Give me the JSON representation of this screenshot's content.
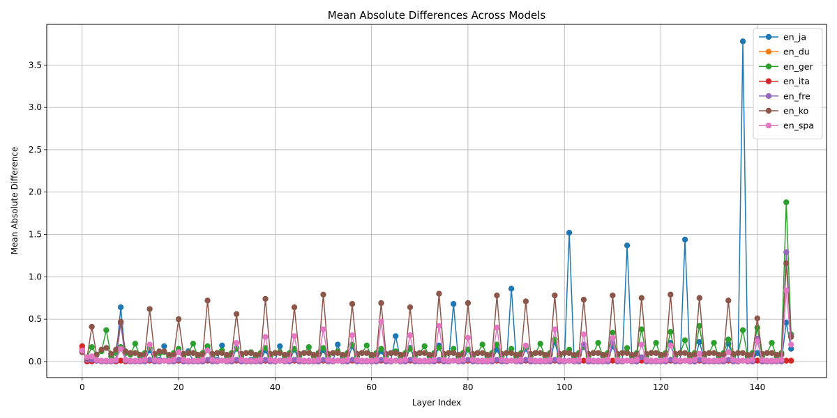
{
  "chart_data": {
    "type": "line",
    "title": "Mean Absolute Differences Across Models",
    "xlabel": "Layer Index",
    "ylabel": "Mean Absolute Difference",
    "xlim": [
      -7.35,
      154.35
    ],
    "ylim": [
      -0.19,
      3.98
    ],
    "xticks": [
      0,
      20,
      40,
      60,
      80,
      100,
      120,
      140
    ],
    "yticks": [
      0.0,
      0.5,
      1.0,
      1.5,
      2.0,
      2.5,
      3.0,
      3.5
    ],
    "grid": true,
    "legend_position": "top-right",
    "x_start": 0,
    "series": [
      {
        "name": "en_ja",
        "color": "#1f77b4",
        "values": [
          0.12,
          0.03,
          0.04,
          0.01,
          0.01,
          0.01,
          0.01,
          0.02,
          0.64,
          0.02,
          0.01,
          0.01,
          0.01,
          0.02,
          0.13,
          0.02,
          0.02,
          0.18,
          0.02,
          0.01,
          0.14,
          0.02,
          0.12,
          0.01,
          0.01,
          0.02,
          0.14,
          0.03,
          0.02,
          0.19,
          0.02,
          0.01,
          0.16,
          0.02,
          0.01,
          0.02,
          0.01,
          0.01,
          0.13,
          0.02,
          0.01,
          0.18,
          0.02,
          0.01,
          0.14,
          0.01,
          0.01,
          0.01,
          0.01,
          0.02,
          0.13,
          0.02,
          0.01,
          0.2,
          0.02,
          0.01,
          0.18,
          0.02,
          0.01,
          0.01,
          0.01,
          0.02,
          0.12,
          0.02,
          0.01,
          0.3,
          0.02,
          0.01,
          0.16,
          0.02,
          0.01,
          0.01,
          0.01,
          0.01,
          0.19,
          0.02,
          0.01,
          0.68,
          0.02,
          0.01,
          0.14,
          0.02,
          0.01,
          0.01,
          0.01,
          0.01,
          0.14,
          0.02,
          0.01,
          0.86,
          0.02,
          0.01,
          0.15,
          0.02,
          0.01,
          0.01,
          0.01,
          0.01,
          0.23,
          0.02,
          0.01,
          1.52,
          0.02,
          0.01,
          0.2,
          0.02,
          0.01,
          0.01,
          0.01,
          0.01,
          0.18,
          0.02,
          0.01,
          1.37,
          0.02,
          0.01,
          0.04,
          0.02,
          0.01,
          0.01,
          0.01,
          0.01,
          0.22,
          0.02,
          0.01,
          1.44,
          0.02,
          0.01,
          0.23,
          0.02,
          0.01,
          0.01,
          0.01,
          0.01,
          0.21,
          0.02,
          0.01,
          3.78,
          0.02,
          0.01,
          0.1,
          0.02,
          0.01,
          0.01,
          0.01,
          0.01,
          0.46,
          0.15
        ]
      },
      {
        "name": "en_du",
        "color": "#ff7f0e",
        "values": [
          0.15,
          0.01,
          0.01,
          0.01,
          0.0,
          0.0,
          0.0,
          0.0,
          0.01,
          0.01,
          0.0,
          0.0,
          0.0,
          0.0,
          0.01,
          0.0,
          0.0,
          0.01,
          0.0,
          0.0,
          0.01,
          0.0,
          0.0,
          0.0,
          0.0,
          0.0,
          0.01,
          0.0,
          0.0,
          0.01,
          0.0,
          0.0,
          0.01,
          0.0,
          0.0,
          0.0,
          0.0,
          0.0,
          0.01,
          0.0,
          0.0,
          0.01,
          0.0,
          0.0,
          0.01,
          0.0,
          0.0,
          0.0,
          0.0,
          0.0,
          0.01,
          0.0,
          0.0,
          0.01,
          0.0,
          0.0,
          0.01,
          0.0,
          0.0,
          0.0,
          0.0,
          0.0,
          0.01,
          0.0,
          0.0,
          0.01,
          0.0,
          0.0,
          0.01,
          0.0,
          0.0,
          0.0,
          0.0,
          0.0,
          0.01,
          0.0,
          0.0,
          0.01,
          0.0,
          0.0,
          0.01,
          0.0,
          0.0,
          0.0,
          0.0,
          0.0,
          0.01,
          0.0,
          0.0,
          0.01,
          0.0,
          0.0,
          0.01,
          0.0,
          0.0,
          0.0,
          0.0,
          0.0,
          0.01,
          0.0,
          0.0,
          0.01,
          0.0,
          0.0,
          0.01,
          0.0,
          0.0,
          0.0,
          0.0,
          0.0,
          0.01,
          0.0,
          0.0,
          0.01,
          0.0,
          0.0,
          0.01,
          0.0,
          0.0,
          0.0,
          0.0,
          0.0,
          0.01,
          0.0,
          0.0,
          0.01,
          0.0,
          0.0,
          0.01,
          0.0,
          0.0,
          0.0,
          0.0,
          0.0,
          0.01,
          0.0,
          0.0,
          0.01,
          0.0,
          0.0,
          0.01,
          0.0,
          0.0,
          0.0,
          0.0,
          0.0,
          0.01,
          0.01
        ]
      },
      {
        "name": "en_ger",
        "color": "#2ca02c",
        "values": [
          0.12,
          0.05,
          0.17,
          0.08,
          0.12,
          0.37,
          0.06,
          0.1,
          0.17,
          0.1,
          0.08,
          0.21,
          0.06,
          0.1,
          0.16,
          0.06,
          0.1,
          0.11,
          0.06,
          0.1,
          0.15,
          0.06,
          0.1,
          0.21,
          0.06,
          0.1,
          0.18,
          0.06,
          0.1,
          0.13,
          0.06,
          0.1,
          0.15,
          0.06,
          0.1,
          0.11,
          0.06,
          0.1,
          0.16,
          0.06,
          0.1,
          0.11,
          0.06,
          0.1,
          0.15,
          0.06,
          0.1,
          0.17,
          0.06,
          0.1,
          0.16,
          0.06,
          0.1,
          0.12,
          0.06,
          0.1,
          0.2,
          0.06,
          0.1,
          0.19,
          0.06,
          0.1,
          0.15,
          0.06,
          0.1,
          0.12,
          0.06,
          0.1,
          0.15,
          0.06,
          0.1,
          0.18,
          0.06,
          0.1,
          0.16,
          0.06,
          0.1,
          0.15,
          0.06,
          0.1,
          0.14,
          0.06,
          0.1,
          0.2,
          0.06,
          0.1,
          0.2,
          0.06,
          0.1,
          0.15,
          0.06,
          0.1,
          0.17,
          0.06,
          0.1,
          0.21,
          0.06,
          0.1,
          0.26,
          0.06,
          0.1,
          0.14,
          0.06,
          0.1,
          0.17,
          0.06,
          0.1,
          0.22,
          0.06,
          0.1,
          0.34,
          0.06,
          0.1,
          0.16,
          0.06,
          0.1,
          0.38,
          0.06,
          0.1,
          0.22,
          0.06,
          0.1,
          0.35,
          0.06,
          0.1,
          0.25,
          0.06,
          0.1,
          0.42,
          0.06,
          0.1,
          0.22,
          0.06,
          0.1,
          0.26,
          0.06,
          0.1,
          0.37,
          0.06,
          0.1,
          0.4,
          0.06,
          0.1,
          0.22,
          0.06,
          0.1,
          1.88,
          0.32
        ]
      },
      {
        "name": "en_ita",
        "color": "#d62728",
        "values": [
          0.18,
          0.0,
          0.0,
          0.01,
          0.0,
          0.0,
          0.0,
          0.0,
          0.01,
          0.0,
          0.0,
          0.0,
          0.0,
          0.0,
          0.01,
          0.0,
          0.0,
          0.01,
          0.0,
          0.0,
          0.01,
          0.0,
          0.0,
          0.0,
          0.0,
          0.0,
          0.01,
          0.0,
          0.0,
          0.01,
          0.0,
          0.0,
          0.01,
          0.0,
          0.0,
          0.0,
          0.0,
          0.0,
          0.01,
          0.0,
          0.0,
          0.01,
          0.0,
          0.0,
          0.01,
          0.0,
          0.0,
          0.0,
          0.0,
          0.0,
          0.01,
          0.0,
          0.0,
          0.01,
          0.0,
          0.0,
          0.01,
          0.0,
          0.0,
          0.0,
          0.0,
          0.0,
          0.01,
          0.0,
          0.0,
          0.01,
          0.0,
          0.0,
          0.01,
          0.0,
          0.0,
          0.0,
          0.0,
          0.0,
          0.01,
          0.0,
          0.0,
          0.01,
          0.0,
          0.0,
          0.01,
          0.0,
          0.0,
          0.0,
          0.0,
          0.0,
          0.01,
          0.0,
          0.0,
          0.01,
          0.0,
          0.0,
          0.01,
          0.0,
          0.0,
          0.0,
          0.0,
          0.0,
          0.01,
          0.0,
          0.0,
          0.01,
          0.0,
          0.0,
          0.01,
          0.0,
          0.0,
          0.0,
          0.0,
          0.0,
          0.01,
          0.0,
          0.0,
          0.01,
          0.0,
          0.0,
          0.01,
          0.0,
          0.0,
          0.0,
          0.0,
          0.0,
          0.01,
          0.0,
          0.0,
          0.01,
          0.0,
          0.0,
          0.01,
          0.0,
          0.0,
          0.0,
          0.0,
          0.0,
          0.01,
          0.0,
          0.0,
          0.01,
          0.0,
          0.0,
          0.01,
          0.0,
          0.0,
          0.0,
          0.0,
          0.0,
          0.01,
          0.01
        ]
      },
      {
        "name": "en_fre",
        "color": "#9467bd",
        "values": [
          0.13,
          0.02,
          0.02,
          0.01,
          0.0,
          0.0,
          0.0,
          0.01,
          0.45,
          0.01,
          0.0,
          0.0,
          0.0,
          0.0,
          0.02,
          0.0,
          0.0,
          0.01,
          0.0,
          0.0,
          0.02,
          0.0,
          0.0,
          0.0,
          0.0,
          0.0,
          0.02,
          0.0,
          0.0,
          0.01,
          0.0,
          0.0,
          0.02,
          0.0,
          0.0,
          0.0,
          0.0,
          0.0,
          0.02,
          0.0,
          0.0,
          0.01,
          0.0,
          0.0,
          0.02,
          0.0,
          0.0,
          0.0,
          0.0,
          0.0,
          0.02,
          0.0,
          0.0,
          0.01,
          0.0,
          0.0,
          0.02,
          0.0,
          0.0,
          0.0,
          0.0,
          0.0,
          0.02,
          0.0,
          0.0,
          0.01,
          0.0,
          0.0,
          0.02,
          0.0,
          0.0,
          0.0,
          0.0,
          0.0,
          0.02,
          0.0,
          0.0,
          0.01,
          0.0,
          0.0,
          0.02,
          0.0,
          0.0,
          0.0,
          0.0,
          0.0,
          0.02,
          0.0,
          0.0,
          0.01,
          0.0,
          0.0,
          0.02,
          0.0,
          0.0,
          0.0,
          0.0,
          0.0,
          0.02,
          0.0,
          0.0,
          0.01,
          0.0,
          0.0,
          0.2,
          0.0,
          0.0,
          0.0,
          0.0,
          0.0,
          0.22,
          0.0,
          0.0,
          0.01,
          0.0,
          0.0,
          0.05,
          0.0,
          0.0,
          0.0,
          0.0,
          0.0,
          0.02,
          0.0,
          0.0,
          0.01,
          0.0,
          0.0,
          0.02,
          0.0,
          0.0,
          0.0,
          0.0,
          0.0,
          0.02,
          0.0,
          0.0,
          0.01,
          0.0,
          0.0,
          0.27,
          0.0,
          0.0,
          0.0,
          0.0,
          0.0,
          1.29,
          0.3
        ]
      },
      {
        "name": "en_ko",
        "color": "#8c564b",
        "values": [
          0.11,
          0.04,
          0.41,
          0.08,
          0.14,
          0.16,
          0.09,
          0.14,
          0.47,
          0.12,
          0.1,
          0.1,
          0.08,
          0.08,
          0.62,
          0.09,
          0.12,
          0.12,
          0.08,
          0.08,
          0.5,
          0.09,
          0.1,
          0.1,
          0.08,
          0.08,
          0.72,
          0.09,
          0.1,
          0.1,
          0.08,
          0.08,
          0.56,
          0.09,
          0.1,
          0.1,
          0.08,
          0.08,
          0.74,
          0.09,
          0.1,
          0.1,
          0.08,
          0.08,
          0.64,
          0.09,
          0.1,
          0.1,
          0.08,
          0.08,
          0.79,
          0.09,
          0.1,
          0.1,
          0.08,
          0.08,
          0.68,
          0.09,
          0.1,
          0.1,
          0.08,
          0.08,
          0.69,
          0.09,
          0.1,
          0.1,
          0.08,
          0.08,
          0.64,
          0.09,
          0.1,
          0.1,
          0.08,
          0.08,
          0.8,
          0.09,
          0.1,
          0.1,
          0.08,
          0.08,
          0.69,
          0.09,
          0.1,
          0.1,
          0.08,
          0.08,
          0.78,
          0.09,
          0.1,
          0.1,
          0.08,
          0.08,
          0.71,
          0.09,
          0.1,
          0.1,
          0.08,
          0.08,
          0.78,
          0.09,
          0.1,
          0.1,
          0.08,
          0.08,
          0.73,
          0.09,
          0.1,
          0.1,
          0.08,
          0.08,
          0.78,
          0.09,
          0.1,
          0.1,
          0.08,
          0.08,
          0.75,
          0.09,
          0.1,
          0.1,
          0.08,
          0.08,
          0.79,
          0.09,
          0.1,
          0.1,
          0.08,
          0.08,
          0.75,
          0.09,
          0.1,
          0.1,
          0.08,
          0.08,
          0.72,
          0.09,
          0.1,
          0.1,
          0.08,
          0.08,
          0.51,
          0.09,
          0.1,
          0.1,
          0.08,
          0.08,
          1.16,
          0.29
        ]
      },
      {
        "name": "en_spa",
        "color": "#e377c2",
        "values": [
          0.13,
          0.05,
          0.06,
          0.02,
          0.01,
          0.01,
          0.01,
          0.02,
          0.15,
          0.02,
          0.01,
          0.01,
          0.01,
          0.02,
          0.2,
          0.02,
          0.01,
          0.01,
          0.01,
          0.02,
          0.11,
          0.02,
          0.01,
          0.01,
          0.01,
          0.02,
          0.13,
          0.02,
          0.01,
          0.01,
          0.01,
          0.02,
          0.22,
          0.02,
          0.01,
          0.01,
          0.01,
          0.02,
          0.29,
          0.02,
          0.01,
          0.01,
          0.01,
          0.02,
          0.3,
          0.02,
          0.01,
          0.01,
          0.01,
          0.02,
          0.38,
          0.02,
          0.01,
          0.01,
          0.01,
          0.02,
          0.31,
          0.02,
          0.01,
          0.01,
          0.01,
          0.02,
          0.47,
          0.02,
          0.01,
          0.01,
          0.01,
          0.02,
          0.31,
          0.02,
          0.01,
          0.01,
          0.01,
          0.02,
          0.42,
          0.02,
          0.01,
          0.01,
          0.01,
          0.02,
          0.28,
          0.02,
          0.01,
          0.01,
          0.01,
          0.02,
          0.4,
          0.02,
          0.01,
          0.01,
          0.01,
          0.02,
          0.19,
          0.02,
          0.01,
          0.01,
          0.01,
          0.02,
          0.38,
          0.02,
          0.01,
          0.01,
          0.01,
          0.02,
          0.32,
          0.02,
          0.01,
          0.01,
          0.01,
          0.02,
          0.28,
          0.02,
          0.01,
          0.01,
          0.01,
          0.02,
          0.2,
          0.02,
          0.01,
          0.01,
          0.01,
          0.02,
          0.19,
          0.02,
          0.01,
          0.01,
          0.01,
          0.02,
          0.09,
          0.02,
          0.01,
          0.01,
          0.01,
          0.02,
          0.11,
          0.02,
          0.01,
          0.01,
          0.01,
          0.02,
          0.24,
          0.02,
          0.01,
          0.01,
          0.01,
          0.02,
          0.84,
          0.2
        ]
      }
    ]
  }
}
